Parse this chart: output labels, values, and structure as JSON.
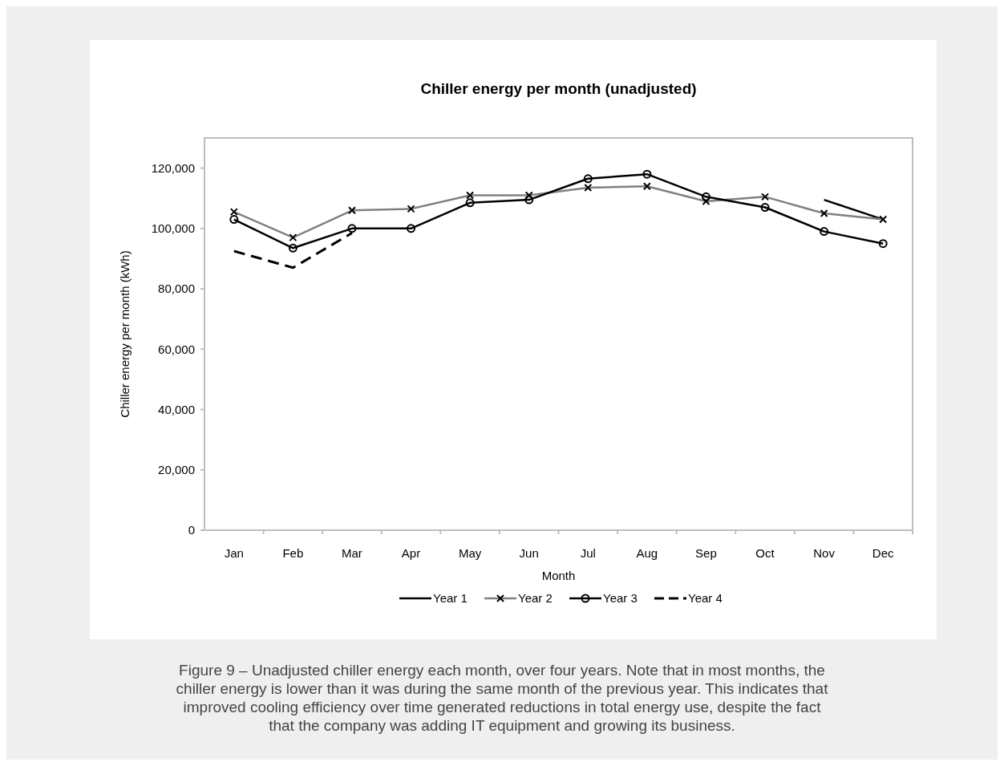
{
  "chart_data": {
    "type": "line",
    "title": "Chiller energy per month (unadjusted)",
    "xlabel": "Month",
    "ylabel": "Chiller energy per month (kWh)",
    "categories": [
      "Jan",
      "Feb",
      "Mar",
      "Apr",
      "May",
      "Jun",
      "Jul",
      "Aug",
      "Sep",
      "Oct",
      "Nov",
      "Dec"
    ],
    "series": [
      {
        "name": "Year 1",
        "color": "#000000",
        "line_style": "solid",
        "values": [
          null,
          null,
          null,
          null,
          null,
          null,
          null,
          null,
          null,
          null,
          109500,
          103000
        ]
      },
      {
        "name": "Year 2",
        "color": "#808080",
        "marker": "cross",
        "line_style": "solid",
        "values": [
          105500,
          97000,
          106000,
          106500,
          111000,
          111000,
          113500,
          114000,
          109000,
          110500,
          105000,
          103000
        ]
      },
      {
        "name": "Year 3",
        "color": "#000000",
        "marker": "circle",
        "line_style": "solid",
        "values": [
          103000,
          93500,
          100000,
          100000,
          108500,
          109500,
          116500,
          118000,
          110500,
          107000,
          99000,
          95000
        ]
      },
      {
        "name": "Year 4",
        "color": "#000000",
        "line_style": "dashed",
        "values": [
          92500,
          87000,
          98500,
          null,
          null,
          null,
          null,
          null,
          null,
          null,
          null,
          null
        ]
      }
    ],
    "ylim": [
      0,
      130000
    ],
    "yticks": [
      0,
      {
        "value": 20000,
        "label": "20,000"
      },
      {
        "value": 40000,
        "label": "40,000"
      },
      {
        "value": 60000,
        "label": "60,000"
      },
      {
        "value": 80000,
        "label": "80,000"
      },
      {
        "value": 100000,
        "label": "100,000"
      },
      {
        "value": 120000,
        "label": "120,000"
      }
    ],
    "grid": false,
    "legend": "bottom",
    "annotations": [
      "Figure 9 – Unadjusted chiller energy each month, over four years. Note that in most months, the chiller energy is lower than it was during the same month of the previous year. This indicates that improved cooling efficiency over time generated reductions in total energy use, despite the fact that the company was adding IT equipment and growing its business."
    ]
  }
}
